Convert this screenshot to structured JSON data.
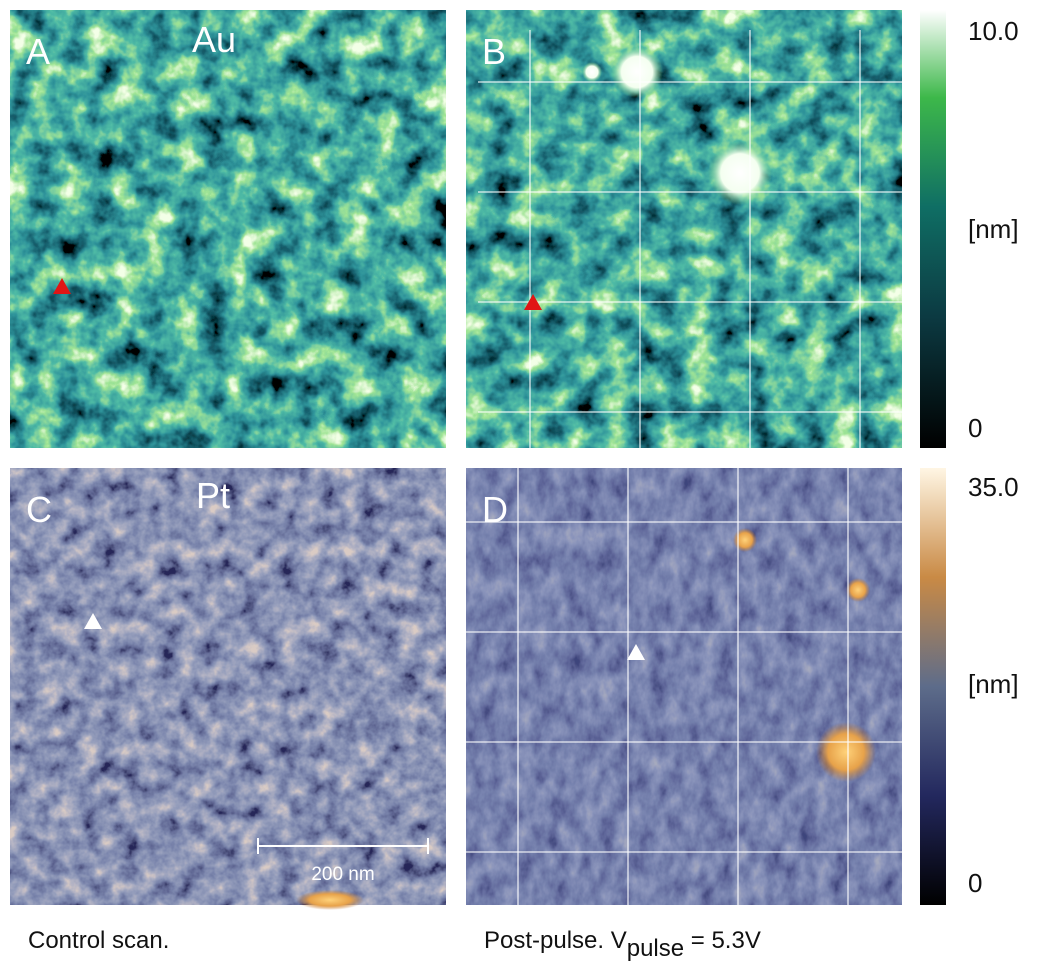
{
  "panels": [
    {
      "label": "A",
      "material": "Au"
    },
    {
      "label": "B"
    },
    {
      "label": "C",
      "material": "Pt"
    },
    {
      "label": "D"
    }
  ],
  "colorbars": [
    {
      "max": "10.0",
      "unit": "[nm]",
      "min": "0"
    },
    {
      "max": "35.0",
      "unit": "[nm]",
      "min": "0"
    }
  ],
  "scale_bar": "200 nm",
  "captions": {
    "left": "Control scan.",
    "right": {
      "text": "Post-pulse. V",
      "subscript": "pulse",
      "suffix": " = 5.3V"
    }
  }
}
